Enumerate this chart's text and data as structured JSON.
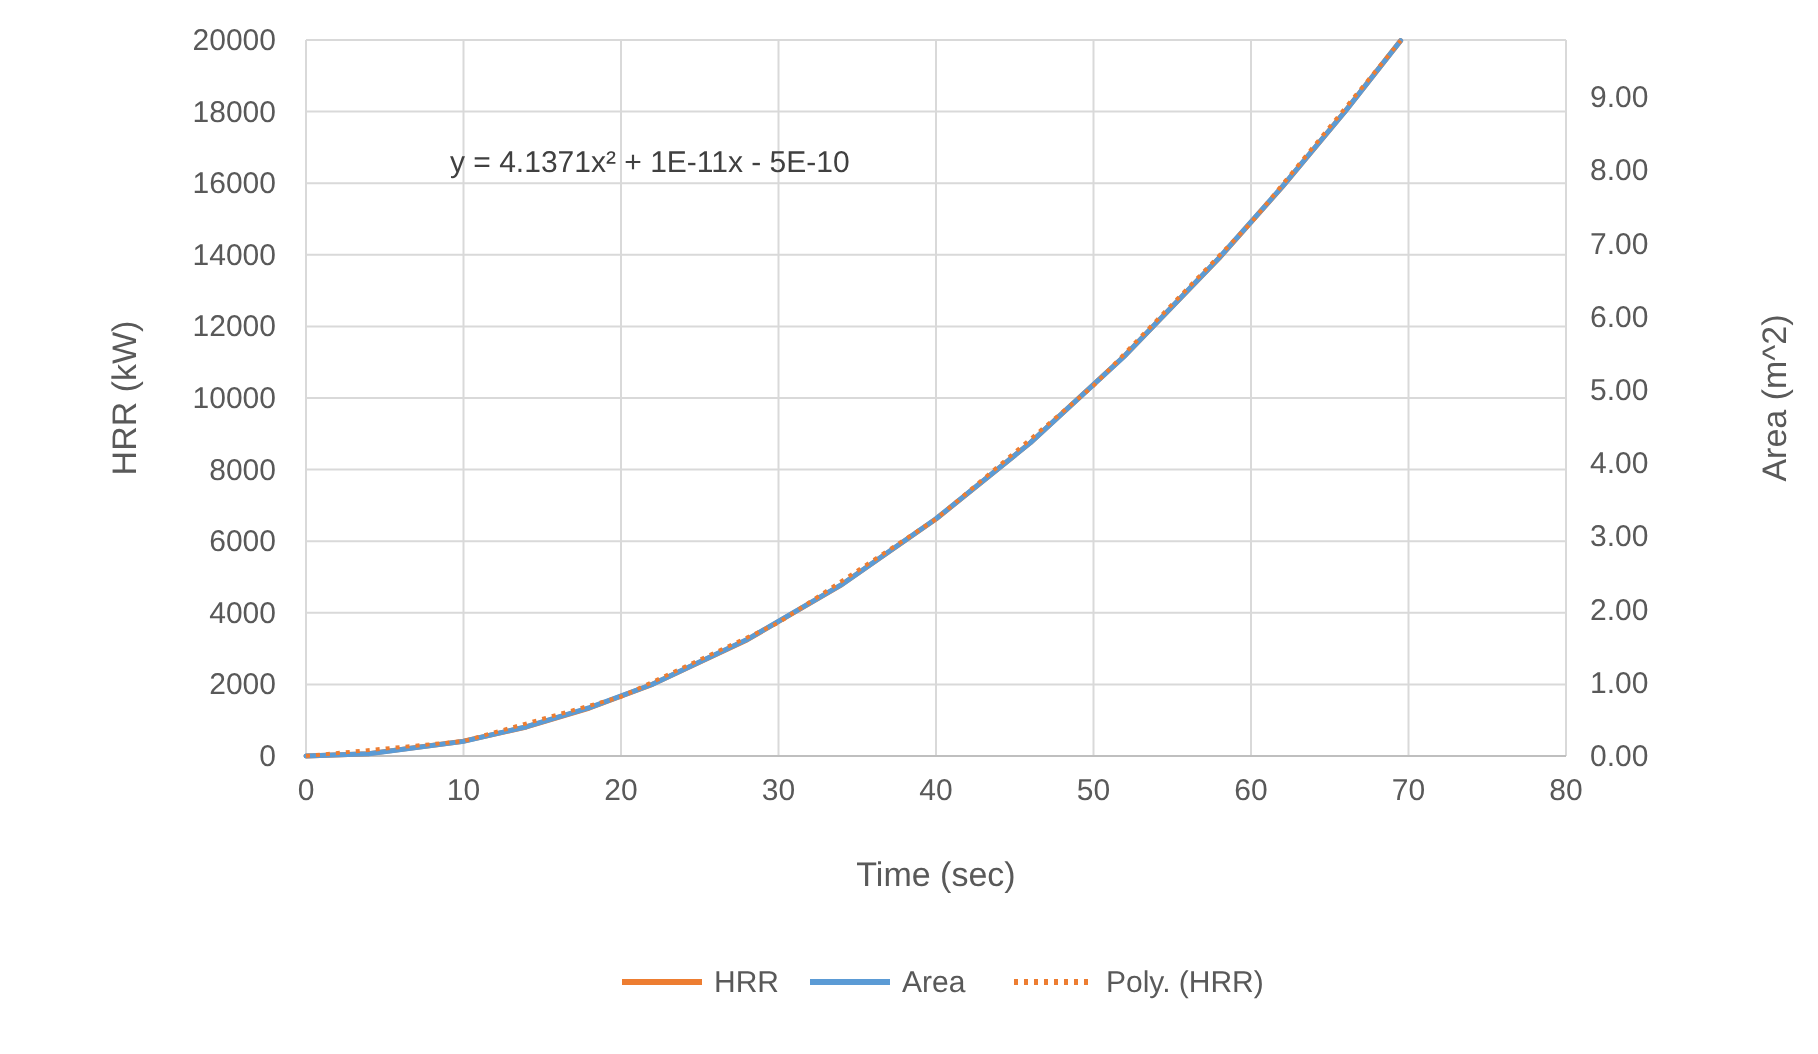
{
  "chart_data": {
    "type": "line",
    "xlabel": "Time (sec)",
    "ylabel": "HRR (kW)",
    "y2label": "Area (m^2)",
    "annotations": [
      "y = 4.1371x² + 1E-11x - 5E-10"
    ],
    "xlim": [
      0,
      80
    ],
    "xticks": [
      0,
      10,
      20,
      30,
      40,
      50,
      60,
      70,
      80
    ],
    "ylim": [
      0,
      20000
    ],
    "yticks": [
      0,
      2000,
      4000,
      6000,
      8000,
      10000,
      12000,
      14000,
      16000,
      18000,
      20000
    ],
    "y2lim": [
      0,
      9.78
    ],
    "y2ticks": [
      {
        "value": 0,
        "label": "0.00"
      },
      {
        "value": 1,
        "label": "1.00"
      },
      {
        "value": 2,
        "label": "2.00"
      },
      {
        "value": 3,
        "label": "3.00"
      },
      {
        "value": 4,
        "label": "4.00"
      },
      {
        "value": 5,
        "label": "5.00"
      },
      {
        "value": 6,
        "label": "6.00"
      },
      {
        "value": 7,
        "label": "7.00"
      },
      {
        "value": 8,
        "label": "8.00"
      },
      {
        "value": 9,
        "label": "9.00"
      }
    ],
    "grid": true,
    "legend": "bottom",
    "marker": "none",
    "x": [
      0,
      4,
      10,
      14,
      18,
      22,
      28,
      34,
      40,
      46,
      52,
      58,
      62,
      66,
      69.5
    ],
    "series": [
      {
        "name": "HRR",
        "color": "#ed7d31",
        "values": [
          0,
          66,
          414,
          811,
          1340,
          2002,
          3243,
          4782,
          6619,
          8754,
          11187,
          13917,
          15903,
          18021,
          19983
        ]
      },
      {
        "name": "Area",
        "color": "#5b9bd5",
        "axis": "y2",
        "values": [
          0,
          0.03,
          0.2,
          0.4,
          0.66,
          0.98,
          1.59,
          2.34,
          3.24,
          4.28,
          5.47,
          6.81,
          7.78,
          8.81,
          9.77
        ]
      },
      {
        "name": "Poly. (HRR)",
        "color": "#ed7d31",
        "line_style": "dotted",
        "x": [
          0,
          10,
          20,
          30,
          40,
          50,
          60,
          69.5
        ],
        "values": [
          0,
          414,
          1655,
          3723,
          6619,
          10343,
          14894,
          19983
        ]
      }
    ]
  }
}
